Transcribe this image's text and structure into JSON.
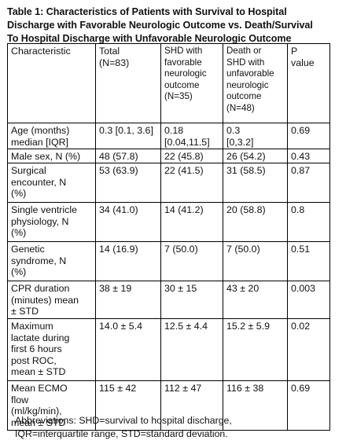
{
  "title_lines": [
    "Table 1: Characteristics of Patients with Survival to Hospital",
    "Discharge with Favorable Neurologic Outcome vs. Death/Survival",
    "To Hospital Discharge with Unfavorable Neurologic Outcome"
  ],
  "table": {
    "headers": [
      [
        "Characteristic"
      ],
      [
        "Total",
        "(N=83)"
      ],
      [
        "SHD with",
        "favorable",
        "neurologic",
        "outcome",
        "(N=35)"
      ],
      [
        "Death or",
        "SHD with",
        "unfavorable",
        "neurologic",
        "outcome",
        "(N=48)"
      ],
      [
        "P",
        "value"
      ]
    ],
    "rows": [
      [
        [
          "Age (months)",
          "median [IQR]"
        ],
        [
          "0.3 [0.1, 3.6]"
        ],
        [
          "0.18",
          "[0.04,11.5]"
        ],
        [
          "0.3",
          "[0,3.2]"
        ],
        [
          "0.69"
        ]
      ],
      [
        [
          "Male sex, N (%)"
        ],
        [
          "48 (57.8)"
        ],
        [
          "22 (45.8)"
        ],
        [
          "26 (54.2)"
        ],
        [
          "0.43"
        ]
      ],
      [
        [
          "Surgical",
          "encounter, N",
          "(%)"
        ],
        [
          "53 (63.9)"
        ],
        [
          "22 (41.5)"
        ],
        [
          "31 (58.5)"
        ],
        [
          "0.87"
        ]
      ],
      [
        [
          "Single ventricle",
          "physiology, N",
          "(%)"
        ],
        [
          "34 (41.0)"
        ],
        [
          "14 (41.2)"
        ],
        [
          "20 (58.8)"
        ],
        [
          "0.8"
        ]
      ],
      [
        [
          "Genetic",
          "syndrome, N",
          "(%)"
        ],
        [
          "14 (16.9)"
        ],
        [
          "7 (50.0)"
        ],
        [
          "7 (50.0)"
        ],
        [
          "0.51"
        ]
      ],
      [
        [
          "CPR duration",
          "(minutes) mean",
          "± STD"
        ],
        [
          "38 ± 19"
        ],
        [
          "30 ± 15"
        ],
        [
          "43 ± 20"
        ],
        [
          "0.003"
        ]
      ],
      [
        [
          "Maximum",
          "lactate during",
          "first 6 hours",
          "post ROC,",
          "mean ± STD"
        ],
        [
          "14.0 ± 5.4"
        ],
        [
          "12.5 ± 4.4"
        ],
        [
          "15.2 ± 5.9"
        ],
        [
          "0.02"
        ]
      ],
      [
        [
          "Mean ECMO",
          "flow",
          "(ml/kg/min),",
          "mean ± STD"
        ],
        [
          "115 ± 42"
        ],
        [
          "112 ± 47"
        ],
        [
          "116 ± 38"
        ],
        [
          "0.69"
        ]
      ]
    ]
  },
  "footnote_lines": [
    "Abbreviations: SHD=survival to hospital discharge,",
    "IQR=interquartile range, STD=standard deviation."
  ]
}
